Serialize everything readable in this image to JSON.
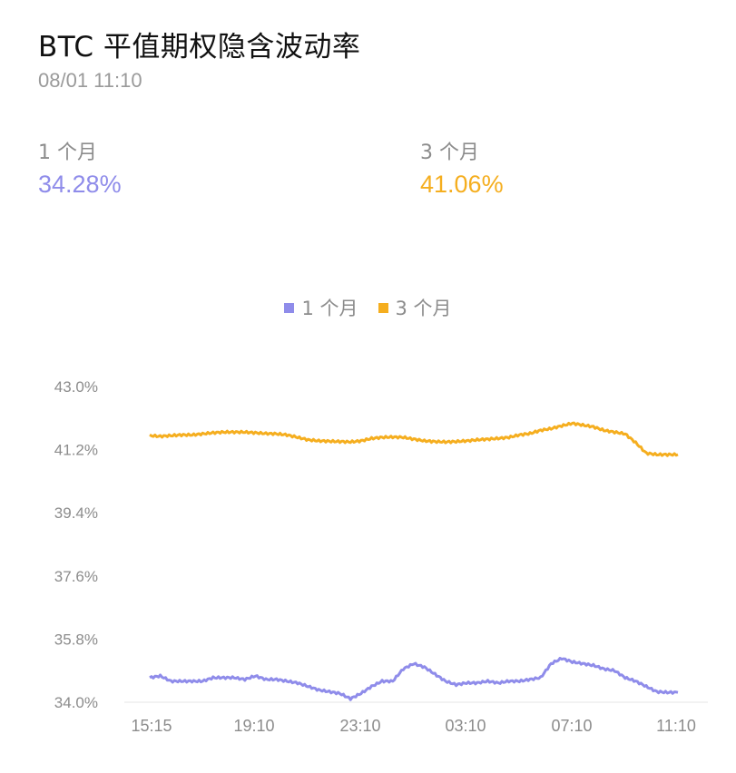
{
  "header": {
    "title": "BTC 平值期权隐含波动率",
    "timestamp": "08/01 11:10"
  },
  "metrics": [
    {
      "label": "1 个月",
      "value": "34.28%",
      "color": "#8f8cea"
    },
    {
      "label": "3 个月",
      "value": "41.06%",
      "color": "#f5ae1f"
    }
  ],
  "legend": [
    {
      "label": "1 个月",
      "color": "#8f8cea"
    },
    {
      "label": "3 个月",
      "color": "#f5ae1f"
    }
  ],
  "chart_data": {
    "type": "line",
    "title": "BTC 平值期权隐含波动率",
    "xlabel": "",
    "ylabel": "",
    "ylim": [
      34.0,
      43.0
    ],
    "y_ticks": [
      "43.0%",
      "41.2%",
      "39.4%",
      "37.6%",
      "35.8%",
      "34.0%"
    ],
    "x_ticks": [
      "15:15",
      "19:10",
      "23:10",
      "03:10",
      "07:10",
      "11:10"
    ],
    "grid": false,
    "legend_position": "top",
    "x": [
      0,
      2,
      4,
      6,
      8,
      10,
      12,
      14,
      16,
      18,
      20,
      22,
      24,
      26,
      28,
      30,
      32,
      34,
      36,
      38,
      40,
      42,
      44,
      46,
      48,
      50,
      52,
      54,
      56,
      58,
      60,
      62,
      64,
      66,
      68,
      70,
      72,
      74,
      76,
      78,
      80,
      82,
      84,
      86,
      88,
      90,
      92,
      94,
      96,
      98,
      100
    ],
    "series": [
      {
        "name": "1 个月",
        "color": "#8f8cea",
        "values": [
          34.7,
          34.75,
          34.6,
          34.6,
          34.6,
          34.6,
          34.7,
          34.7,
          34.7,
          34.65,
          34.75,
          34.65,
          34.65,
          34.6,
          34.55,
          34.45,
          34.35,
          34.3,
          34.25,
          34.1,
          34.25,
          34.45,
          34.6,
          34.6,
          34.95,
          35.1,
          35.0,
          34.8,
          34.6,
          34.5,
          34.55,
          34.55,
          34.6,
          34.55,
          34.6,
          34.6,
          34.65,
          34.7,
          35.1,
          35.25,
          35.15,
          35.1,
          35.05,
          34.95,
          34.9,
          34.7,
          34.6,
          34.45,
          34.3,
          34.28,
          34.28
        ]
      },
      {
        "name": "3 个月",
        "color": "#f5ae1f",
        "values": [
          41.6,
          41.58,
          41.6,
          41.62,
          41.62,
          41.65,
          41.68,
          41.7,
          41.7,
          41.7,
          41.68,
          41.66,
          41.65,
          41.62,
          41.55,
          41.48,
          41.45,
          41.44,
          41.43,
          41.42,
          41.45,
          41.52,
          41.55,
          41.56,
          41.55,
          41.5,
          41.45,
          41.43,
          41.42,
          41.43,
          41.45,
          41.48,
          41.5,
          41.52,
          41.55,
          41.62,
          41.66,
          41.75,
          41.8,
          41.88,
          41.95,
          41.9,
          41.85,
          41.75,
          41.7,
          41.65,
          41.4,
          41.1,
          41.06,
          41.06,
          41.06
        ]
      }
    ]
  }
}
